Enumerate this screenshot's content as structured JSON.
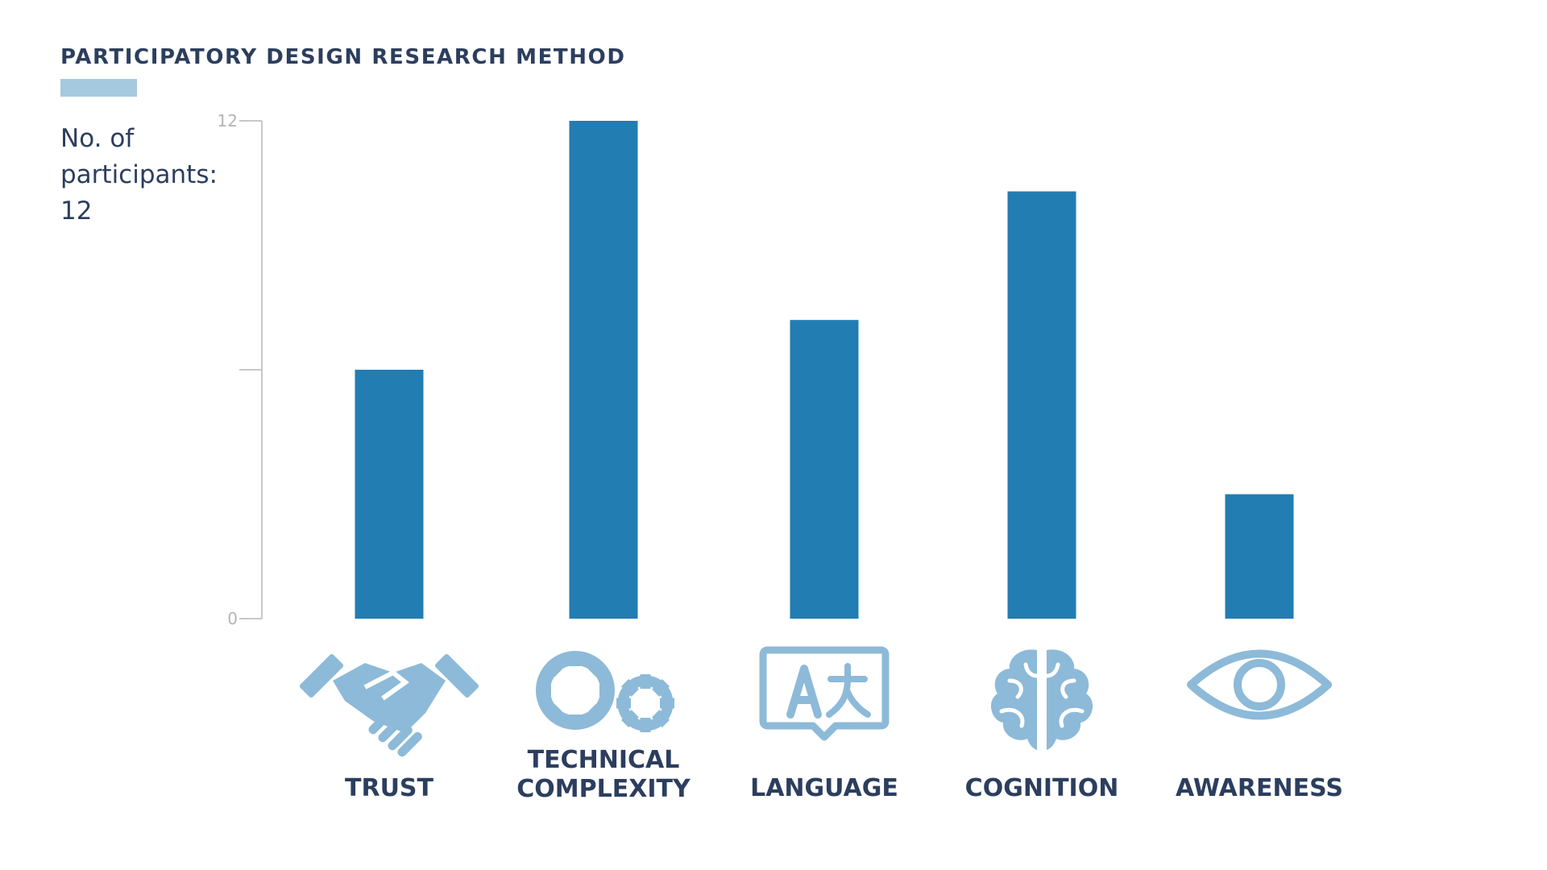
{
  "title": "PARTICIPATORY DESIGN RESEARCH METHOD",
  "note": "No. of participants: 12",
  "colors": {
    "bar": "#227db2",
    "icon": "#8dbad8",
    "text": "#2c3e5e",
    "accent": "#a5c9df"
  },
  "chart_data": {
    "type": "bar",
    "title": "",
    "xlabel": "",
    "ylabel": "",
    "ylim": [
      0,
      12
    ],
    "yticks": [
      0,
      6,
      12
    ],
    "ytick_labels": [
      "0",
      "",
      "12"
    ],
    "grid": false,
    "categories": [
      "TRUST",
      "TECHNICAL COMPLEXITY",
      "LANGUAGE",
      "COGNITION",
      "AWARENESS"
    ],
    "icons": [
      "handshake-icon",
      "gears-icon",
      "translate-icon",
      "brain-icon",
      "eye-icon"
    ],
    "values": [
      6,
      12,
      7.2,
      10.3,
      3
    ]
  }
}
